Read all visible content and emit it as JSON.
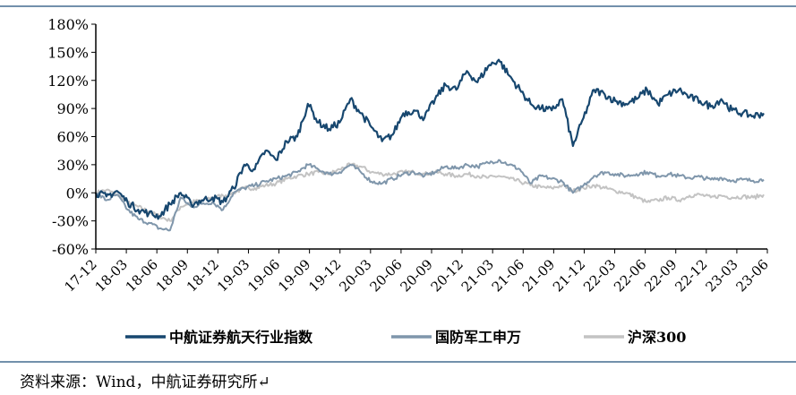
{
  "chart_data": {
    "type": "line",
    "title": "",
    "xlabel": "",
    "ylabel": "",
    "ylim": [
      -60,
      180
    ],
    "y_unit": "%",
    "y_ticks": [
      "180%",
      "150%",
      "120%",
      "90%",
      "60%",
      "30%",
      "0%",
      "-30%",
      "-60%"
    ],
    "x_ticks": [
      "17-12",
      "18-03",
      "18-06",
      "18-09",
      "18-12",
      "19-03",
      "19-06",
      "19-09",
      "19-12",
      "20-03",
      "20-06",
      "20-09",
      "20-12",
      "21-03",
      "21-06",
      "21-09",
      "21-12",
      "22-03",
      "22-06",
      "22-09",
      "22-12",
      "23-03",
      "23-06"
    ],
    "grid": false,
    "legend_position": "bottom",
    "series": [
      {
        "name": "中航证券航天行业指数",
        "color": "#17476f",
        "values": [
          0,
          -4,
          2,
          -10,
          -18,
          -22,
          -25,
          -12,
          0,
          -12,
          -8,
          -5,
          -10,
          5,
          30,
          25,
          45,
          35,
          55,
          60,
          95,
          75,
          68,
          75,
          100,
          85,
          70,
          55,
          62,
          85,
          88,
          80,
          100,
          115,
          110,
          130,
          118,
          135,
          142,
          125,
          110,
          95,
          90,
          88,
          100,
          50,
          80,
          110,
          105,
          98,
          95,
          100,
          110,
          95,
          105,
          110,
          102,
          98,
          92,
          100,
          88,
          85,
          82,
          85
        ]
      },
      {
        "name": "国防军工申万",
        "color": "#7f96ab",
        "values": [
          0,
          -8,
          -2,
          -18,
          -28,
          -32,
          -38,
          -40,
          -5,
          -15,
          -12,
          -10,
          -18,
          0,
          5,
          8,
          12,
          15,
          18,
          22,
          30,
          25,
          20,
          22,
          30,
          22,
          12,
          10,
          15,
          20,
          22,
          18,
          22,
          28,
          26,
          30,
          28,
          32,
          35,
          30,
          25,
          10,
          18,
          15,
          12,
          0,
          8,
          18,
          22,
          20,
          18,
          20,
          22,
          18,
          20,
          18,
          16,
          17,
          14,
          16,
          13,
          14,
          13,
          14
        ]
      },
      {
        "name": "沪深300",
        "color": "#c3c3c3",
        "values": [
          0,
          3,
          -2,
          -10,
          -15,
          -20,
          -25,
          -30,
          -15,
          -10,
          -8,
          -5,
          -3,
          0,
          5,
          5,
          8,
          10,
          15,
          18,
          20,
          22,
          20,
          25,
          30,
          28,
          22,
          20,
          20,
          22,
          22,
          20,
          22,
          20,
          18,
          20,
          18,
          16,
          18,
          15,
          12,
          8,
          6,
          5,
          8,
          2,
          5,
          8,
          5,
          2,
          0,
          -5,
          -10,
          -8,
          -5,
          -8,
          -3,
          -2,
          -5,
          -3,
          -5,
          -4,
          -5,
          -2
        ]
      }
    ]
  },
  "source": "资料来源：Wind，中航证券研究所↵"
}
